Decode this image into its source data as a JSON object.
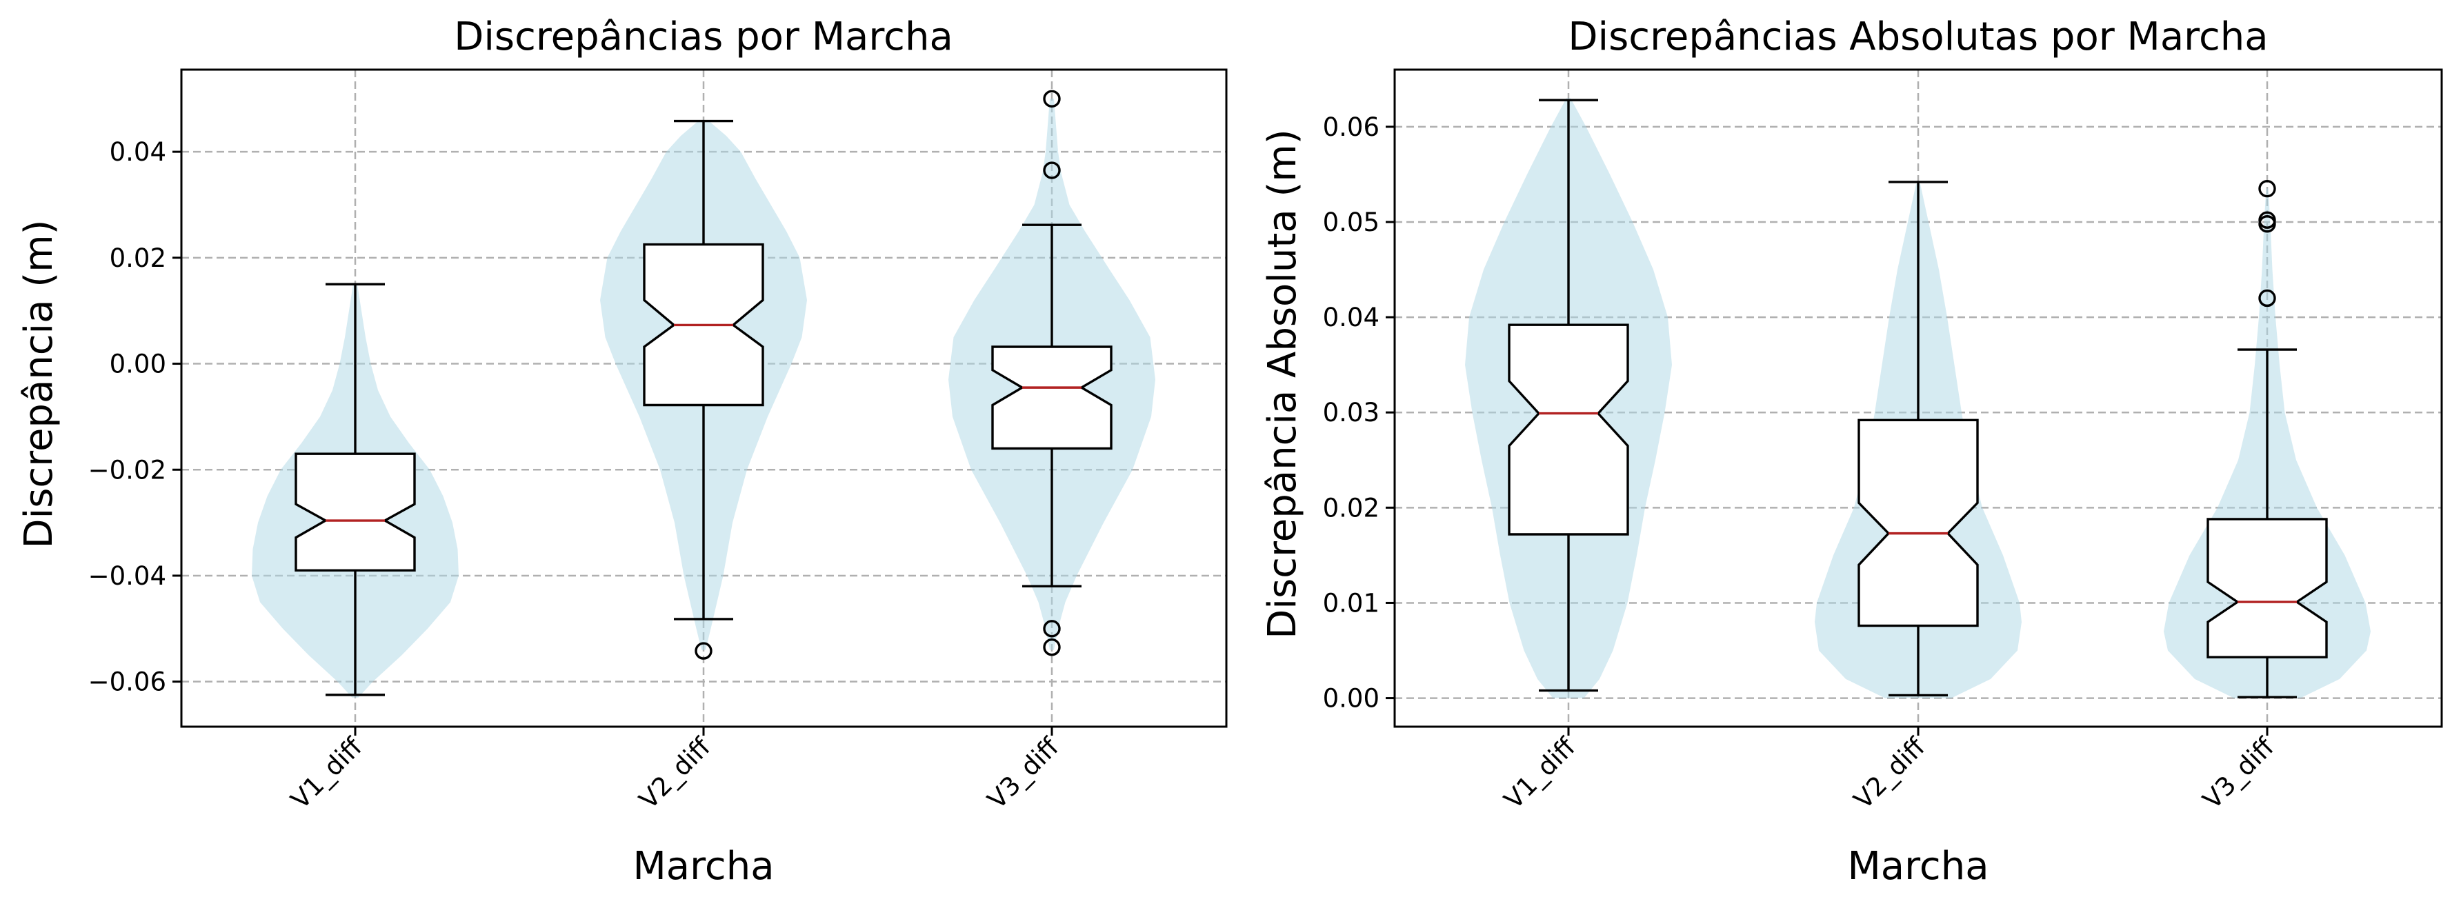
{
  "chart_data": [
    {
      "type": "violin+box",
      "title": "Discrepâncias por Marcha",
      "xlabel": "Marcha",
      "ylabel": "Discrepância (m)",
      "categories": [
        "V1_diff",
        "V2_diff",
        "V3_diff"
      ],
      "ylim": [
        -0.0685,
        0.0555
      ],
      "yticks": [
        -0.06,
        -0.04,
        -0.02,
        0.0,
        0.02,
        0.04
      ],
      "ytick_labels": [
        "−0.06",
        "−0.04",
        "−0.02",
        "0.00",
        "0.02",
        "0.04"
      ],
      "grid": true,
      "violin_color": "#add8e6",
      "median_color": "#b22222",
      "boxes": [
        {
          "whisker_low": -0.0625,
          "q1": -0.039,
          "median": -0.0296,
          "q3": -0.017,
          "whisker_high": 0.015,
          "notch_low": -0.0328,
          "notch_high": -0.0265,
          "fliers": []
        },
        {
          "whisker_low": -0.0482,
          "q1": -0.0078,
          "median": 0.0073,
          "q3": 0.0225,
          "whisker_high": 0.0458,
          "notch_low": 0.0032,
          "notch_high": 0.012,
          "fliers": [
            -0.0542
          ]
        },
        {
          "whisker_low": -0.042,
          "q1": -0.016,
          "median": -0.0045,
          "q3": 0.0032,
          "whisker_high": 0.0262,
          "notch_low": -0.0078,
          "notch_high": -0.0012,
          "fliers": [
            0.05,
            0.0365,
            -0.05,
            -0.0535
          ]
        }
      ],
      "violins": [
        {
          "min": -0.063,
          "max": 0.015,
          "profile": [
            [
              -0.063,
              0.03
            ],
            [
              -0.06,
              0.17
            ],
            [
              -0.055,
              0.45
            ],
            [
              -0.05,
              0.7
            ],
            [
              -0.045,
              0.92
            ],
            [
              -0.04,
              1.0
            ],
            [
              -0.035,
              0.99
            ],
            [
              -0.03,
              0.94
            ],
            [
              -0.025,
              0.85
            ],
            [
              -0.02,
              0.72
            ],
            [
              -0.015,
              0.52
            ],
            [
              -0.01,
              0.34
            ],
            [
              -0.005,
              0.22
            ],
            [
              0.0,
              0.15
            ],
            [
              0.005,
              0.1
            ],
            [
              0.01,
              0.06
            ],
            [
              0.015,
              0.02
            ]
          ]
        },
        {
          "min": -0.054,
          "max": 0.046,
          "profile": [
            [
              -0.054,
              0.02
            ],
            [
              -0.05,
              0.07
            ],
            [
              -0.045,
              0.13
            ],
            [
              -0.04,
              0.19
            ],
            [
              -0.03,
              0.28
            ],
            [
              -0.02,
              0.42
            ],
            [
              -0.01,
              0.62
            ],
            [
              0.0,
              0.85
            ],
            [
              0.005,
              0.95
            ],
            [
              0.012,
              1.0
            ],
            [
              0.02,
              0.93
            ],
            [
              0.025,
              0.8
            ],
            [
              0.03,
              0.65
            ],
            [
              0.035,
              0.5
            ],
            [
              0.04,
              0.36
            ],
            [
              0.043,
              0.22
            ],
            [
              0.046,
              0.04
            ]
          ]
        },
        {
          "min": -0.054,
          "max": 0.05,
          "profile": [
            [
              -0.054,
              0.02
            ],
            [
              -0.05,
              0.06
            ],
            [
              -0.045,
              0.13
            ],
            [
              -0.04,
              0.24
            ],
            [
              -0.03,
              0.5
            ],
            [
              -0.02,
              0.78
            ],
            [
              -0.01,
              0.96
            ],
            [
              -0.003,
              1.0
            ],
            [
              0.005,
              0.95
            ],
            [
              0.012,
              0.75
            ],
            [
              0.018,
              0.55
            ],
            [
              0.025,
              0.32
            ],
            [
              0.03,
              0.17
            ],
            [
              0.036,
              0.09
            ],
            [
              0.04,
              0.06
            ],
            [
              0.045,
              0.04
            ],
            [
              0.05,
              0.02
            ]
          ]
        }
      ]
    },
    {
      "type": "violin+box",
      "title": "Discrepâncias Absolutas por Marcha",
      "xlabel": "Marcha",
      "ylabel": "Discrepância Absoluta (m)",
      "categories": [
        "V1_diff",
        "V2_diff",
        "V3_diff"
      ],
      "ylim": [
        -0.003,
        0.066
      ],
      "yticks": [
        0.0,
        0.01,
        0.02,
        0.03,
        0.04,
        0.05,
        0.06
      ],
      "ytick_labels": [
        "0.00",
        "0.01",
        "0.02",
        "0.03",
        "0.04",
        "0.05",
        "0.06"
      ],
      "grid": true,
      "violin_color": "#add8e6",
      "median_color": "#b22222",
      "boxes": [
        {
          "whisker_low": 0.0008,
          "q1": 0.0172,
          "median": 0.0299,
          "q3": 0.0392,
          "whisker_high": 0.0628,
          "notch_low": 0.0265,
          "notch_high": 0.0333,
          "fliers": []
        },
        {
          "whisker_low": 0.0003,
          "q1": 0.0076,
          "median": 0.0173,
          "q3": 0.0292,
          "whisker_high": 0.0542,
          "notch_low": 0.014,
          "notch_high": 0.0205,
          "fliers": []
        },
        {
          "whisker_low": 0.0001,
          "q1": 0.0043,
          "median": 0.0101,
          "q3": 0.0188,
          "whisker_high": 0.0366,
          "notch_low": 0.008,
          "notch_high": 0.0122,
          "fliers": [
            0.0535,
            0.0502,
            0.0498,
            0.042
          ]
        }
      ],
      "violins": [
        {
          "min": 0.0,
          "max": 0.063,
          "profile": [
            [
              0.0,
              0.15
            ],
            [
              0.002,
              0.3
            ],
            [
              0.005,
              0.43
            ],
            [
              0.01,
              0.57
            ],
            [
              0.015,
              0.66
            ],
            [
              0.02,
              0.74
            ],
            [
              0.025,
              0.84
            ],
            [
              0.03,
              0.93
            ],
            [
              0.035,
              1.0
            ],
            [
              0.04,
              0.96
            ],
            [
              0.045,
              0.82
            ],
            [
              0.05,
              0.62
            ],
            [
              0.055,
              0.4
            ],
            [
              0.06,
              0.17
            ],
            [
              0.063,
              0.02
            ]
          ]
        },
        {
          "min": 0.0,
          "max": 0.054,
          "profile": [
            [
              0.0,
              0.32
            ],
            [
              0.002,
              0.7
            ],
            [
              0.005,
              0.96
            ],
            [
              0.008,
              1.0
            ],
            [
              0.01,
              0.98
            ],
            [
              0.015,
              0.82
            ],
            [
              0.02,
              0.62
            ],
            [
              0.025,
              0.5
            ],
            [
              0.03,
              0.42
            ],
            [
              0.035,
              0.35
            ],
            [
              0.04,
              0.28
            ],
            [
              0.045,
              0.2
            ],
            [
              0.05,
              0.1
            ],
            [
              0.054,
              0.02
            ]
          ]
        },
        {
          "min": 0.0,
          "max": 0.0535,
          "profile": [
            [
              0.0,
              0.32
            ],
            [
              0.002,
              0.7
            ],
            [
              0.005,
              0.96
            ],
            [
              0.007,
              1.0
            ],
            [
              0.01,
              0.95
            ],
            [
              0.015,
              0.75
            ],
            [
              0.02,
              0.48
            ],
            [
              0.025,
              0.28
            ],
            [
              0.03,
              0.17
            ],
            [
              0.035,
              0.12
            ],
            [
              0.04,
              0.08
            ],
            [
              0.045,
              0.05
            ],
            [
              0.05,
              0.03
            ],
            [
              0.0535,
              0.01
            ]
          ]
        }
      ]
    }
  ]
}
